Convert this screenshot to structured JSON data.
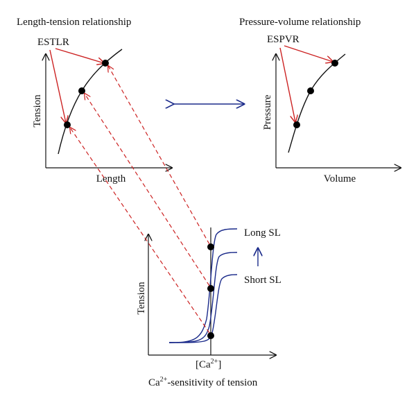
{
  "panels": {
    "length_tension": {
      "title": "Length-tension relationship",
      "xlabel": "Length",
      "ylabel": "Tension",
      "annotation": "ESTLR"
    },
    "pressure_volume": {
      "title": "Pressure-volume relationship",
      "xlabel": "Volume",
      "ylabel": "Pressure",
      "annotation": "ESPVR"
    },
    "calcium": {
      "ylabel": "Tension",
      "xlabel_main": "[Ca",
      "xlabel_sup": "2+",
      "xlabel_close": "]",
      "caption_main": "Ca",
      "caption_sup": "2+",
      "caption_rest": "-sensitivity of tension",
      "label_long": "Long SL",
      "label_short": "Short SL"
    }
  },
  "colors": {
    "axis": "#111111",
    "arrow_red": "#cc2222",
    "curve_blue": "#1a2a8a"
  }
}
